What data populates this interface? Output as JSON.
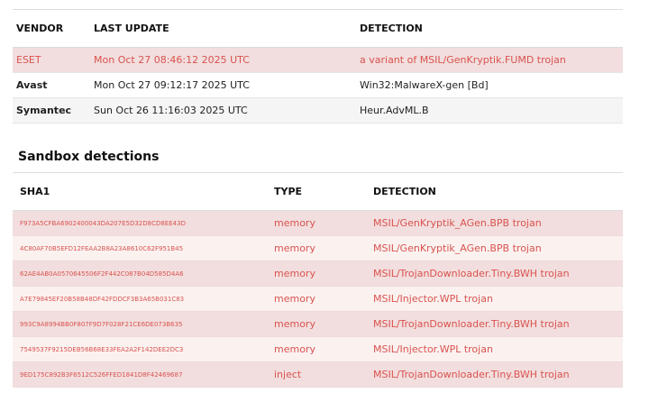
{
  "vendors": {
    "headers": [
      "VENDOR",
      "LAST UPDATE",
      "DETECTION"
    ],
    "rows": [
      {
        "vendor": "ESET",
        "updated": "Mon Oct 27 08:46:12 2025 UTC",
        "detection": "a variant of MSIL/GenKryptik.FUMD trojan"
      },
      {
        "vendor": "Avast",
        "updated": "Mon Oct 27 09:12:17 2025 UTC",
        "detection": "Win32:MalwareX-gen [Bd]"
      },
      {
        "vendor": "Symantec",
        "updated": "Sun Oct 26 11:16:03 2025 UTC",
        "detection": "Heur.AdvML.B"
      }
    ]
  },
  "sandbox": {
    "title": "Sandbox detections",
    "headers": [
      "SHA1",
      "TYPE",
      "DETECTION"
    ],
    "rows": [
      {
        "sha1": "F973A5CFBA6902400043DA207E5D32D8CD8EE43D",
        "type": "memory",
        "detection": "MSIL/GenKryptik_AGen.BPB trojan"
      },
      {
        "sha1": "4C80AF70B5EFD12FEAA2B8A23A8610C62F951B45",
        "type": "memory",
        "detection": "MSIL/GenKryptik_AGen.BPB trojan"
      },
      {
        "sha1": "62AE4AB0A0570645506F2F442C087B04D585D4A6",
        "type": "memory",
        "detection": "MSIL/TrojanDownloader.Tiny.BWH trojan"
      },
      {
        "sha1": "A7E79845EF20B58B48DF42FDDCF3B3A65B031C83",
        "type": "memory",
        "detection": "MSIL/Injector.WPL trojan"
      },
      {
        "sha1": "993C9A8994BB0F807F9D7F028F21CE6DE073B635",
        "type": "memory",
        "detection": "MSIL/TrojanDownloader.Tiny.BWH trojan"
      },
      {
        "sha1": "7549537F9215DEB56B68E33FEA2A2F142DEE2DC3",
        "type": "memory",
        "detection": "MSIL/Injector.WPL trojan"
      },
      {
        "sha1": "9ED175C892B3F6512C526FFED1841D8F42469687",
        "type": "inject",
        "detection": "MSIL/TrojanDownloader.Tiny.BWH trojan"
      }
    ]
  },
  "colors": {
    "alert_text": "#d9534f",
    "alert_bg": "#f2dede"
  }
}
